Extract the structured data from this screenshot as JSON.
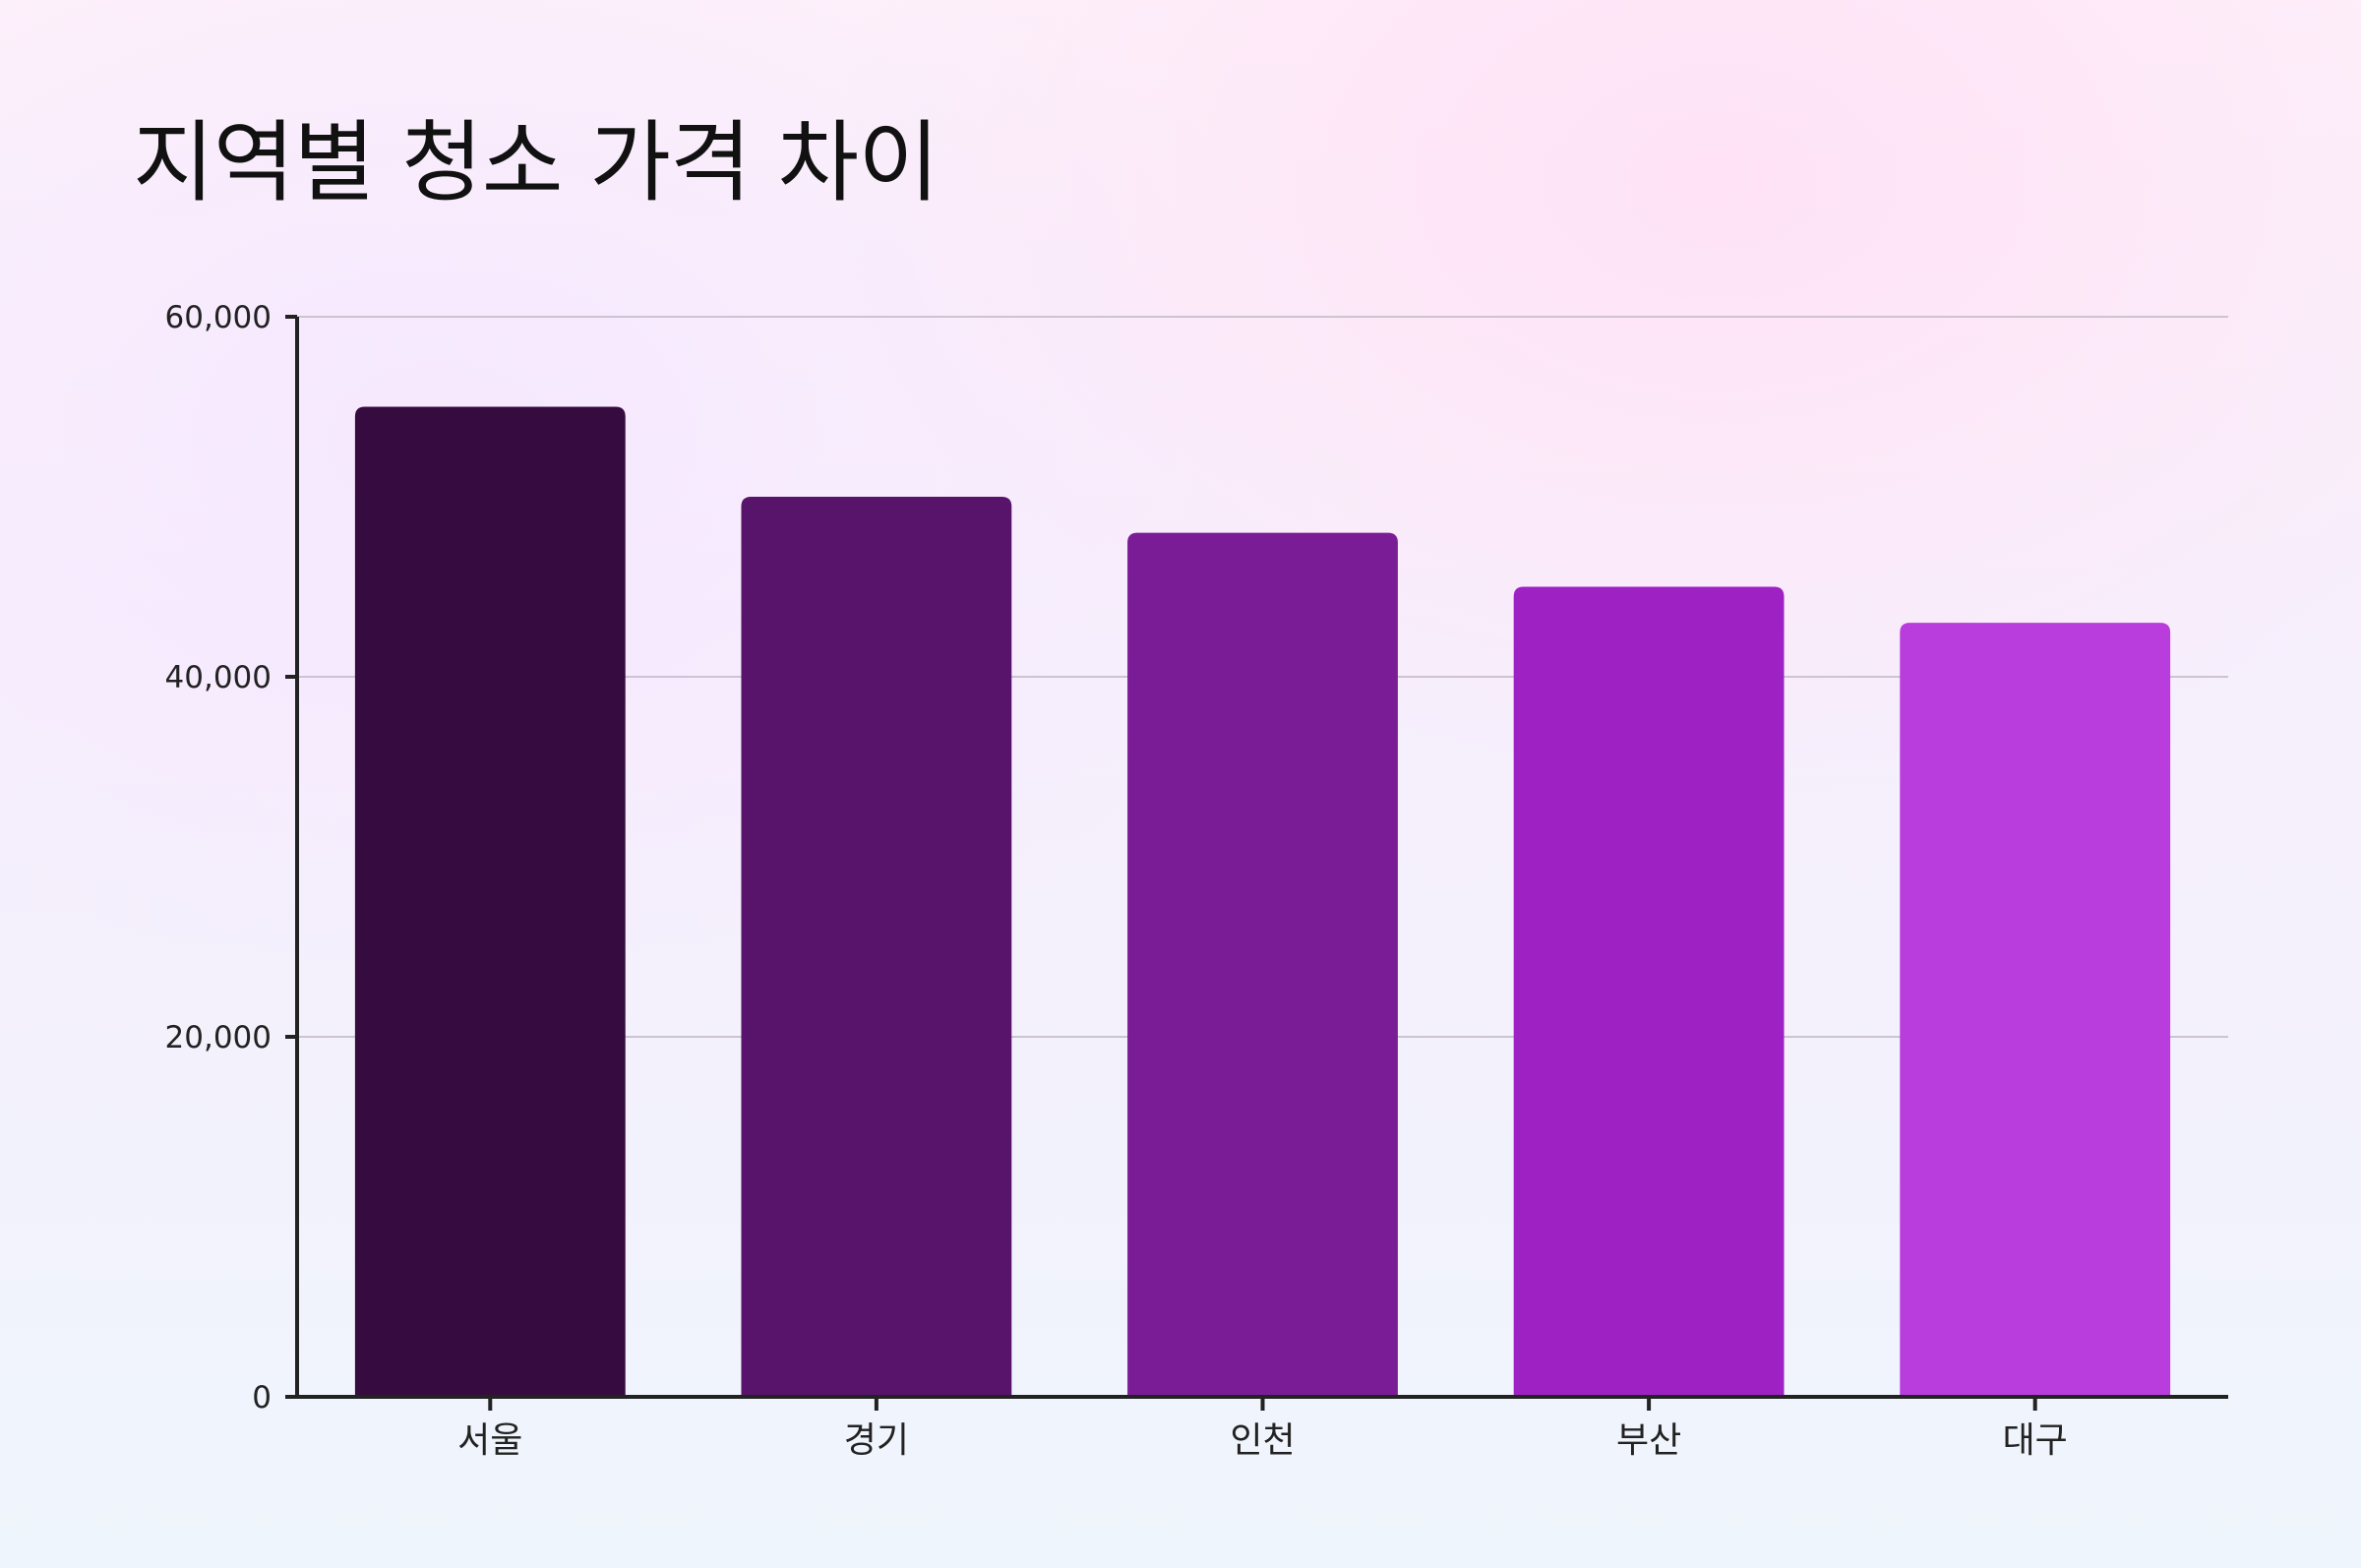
{
  "chart_data": {
    "type": "bar",
    "title": "지역별 청소 가격 차이",
    "xlabel": "",
    "ylabel": "",
    "categories": [
      "서울",
      "경기",
      "인천",
      "부산",
      "대구"
    ],
    "values": [
      55000,
      50000,
      48000,
      45000,
      43000
    ],
    "ylim": [
      0,
      60000
    ],
    "yticks": [
      0,
      20000,
      40000,
      60000
    ],
    "ytick_labels": [
      "0",
      "20,000",
      "40,000",
      "60,000"
    ],
    "bar_colors": [
      "#360c40",
      "#58136b",
      "#7a1c96",
      "#9e22c3",
      "#b93ddd"
    ],
    "grid": true,
    "legend": false
  }
}
